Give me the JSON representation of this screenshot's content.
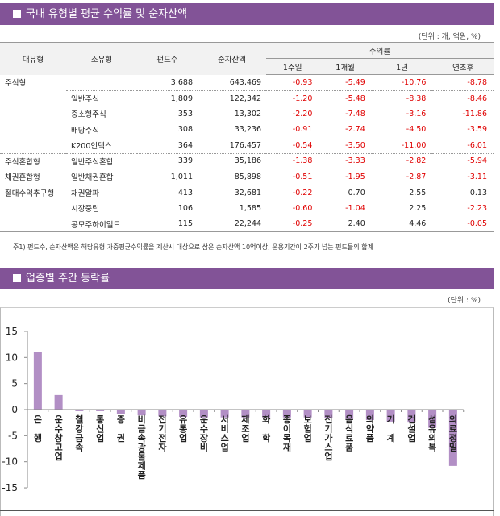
{
  "section1": {
    "title": "국내 유형별 평균 수익률 및 순자산액",
    "unit": "(단위 : 개, 억원, %)",
    "headers": {
      "major_type": "대유형",
      "sub_type": "소유형",
      "fund_count": "펀드수",
      "net_assets": "순자산액",
      "returns_group": "수익률",
      "w1": "1주일",
      "m1": "1개월",
      "y1": "1년",
      "ytd": "연초후"
    },
    "rows": [
      {
        "major": "주식형",
        "sub": "",
        "count": "3,688",
        "assets": "643,469",
        "w1": "-0.93",
        "m1": "-5.49",
        "y1": "-10.76",
        "ytd": "-8.78"
      },
      {
        "major": "",
        "sub": "일반주식",
        "count": "1,809",
        "assets": "122,342",
        "w1": "-1.20",
        "m1": "-5.48",
        "y1": "-8.38",
        "ytd": "-8.46"
      },
      {
        "major": "",
        "sub": "중소형주식",
        "count": "353",
        "assets": "13,302",
        "w1": "-2.20",
        "m1": "-7.48",
        "y1": "-3.16",
        "ytd": "-11.86"
      },
      {
        "major": "",
        "sub": "배당주식",
        "count": "308",
        "assets": "33,236",
        "w1": "-0.91",
        "m1": "-2.74",
        "y1": "-4.50",
        "ytd": "-3.59"
      },
      {
        "major": "",
        "sub": "K200인덱스",
        "count": "364",
        "assets": "176,457",
        "w1": "-0.54",
        "m1": "-3.50",
        "y1": "-11.00",
        "ytd": "-6.01"
      },
      {
        "major": "주식혼합형",
        "sub": "일반주식혼합",
        "count": "339",
        "assets": "35,186",
        "w1": "-1.38",
        "m1": "-3.33",
        "y1": "-2.82",
        "ytd": "-5.94"
      },
      {
        "major": "채권혼합형",
        "sub": "일반채권혼합",
        "count": "1,011",
        "assets": "85,898",
        "w1": "-0.51",
        "m1": "-1.95",
        "y1": "-2.87",
        "ytd": "-3.11"
      },
      {
        "major": "절대수익추구형",
        "sub": "채권알파",
        "count": "413",
        "assets": "32,681",
        "w1": "-0.22",
        "m1": "0.70",
        "y1": "2.55",
        "ytd": "0.13"
      },
      {
        "major": "",
        "sub": "시장중립",
        "count": "106",
        "assets": "1,585",
        "w1": "-0.60",
        "m1": "-1.04",
        "y1": "2.25",
        "ytd": "-2.23"
      },
      {
        "major": "",
        "sub": "공모주하이일드",
        "count": "115",
        "assets": "22,244",
        "w1": "-0.25",
        "m1": "2.40",
        "y1": "4.46",
        "ytd": "-0.05"
      }
    ],
    "note": "주1) 펀드수, 순자산액은 해당유형 가중평균수익률을 계산시 대상으로 삼은 순자산액 10억이상, 운용기간이 2주가 넘는 펀드들의 합계"
  },
  "section2": {
    "title": "업종별 주간 등락률",
    "unit": "(단위 : %)"
  },
  "colors": {
    "header_bg": "#825397",
    "bar": "#b28fc5",
    "negative": "#e00000"
  },
  "chart_data": {
    "type": "bar",
    "title": "업종별 주간 등락률",
    "xlabel": "",
    "ylabel": "",
    "ylim": [
      -15,
      15
    ],
    "yticks": [
      15,
      10,
      5,
      0,
      -5,
      -10,
      -15
    ],
    "grid": false,
    "legend": "none",
    "categories": [
      "은행",
      "운수창고업",
      "철강금속",
      "통신업",
      "증권",
      "비금속광물제품",
      "전기전자",
      "유통업",
      "운수장비",
      "서비스업",
      "제조업",
      "화학",
      "종이목재",
      "보험업",
      "전기가스업",
      "음식료품",
      "의약품",
      "기계",
      "건설업",
      "섬유의복",
      "의료정밀"
    ],
    "labels_vertical": [
      "은\n\n행",
      "운수\n창고\n업",
      "철강\n금속",
      "통\n신\n업",
      "증\n\n권",
      "비금속\n광물제품",
      "전기\n전자",
      "유\n통\n업",
      "운수\n장비",
      "서\n비\n스\n업",
      "제\n조\n업",
      "화\n\n학",
      "종\n이\n목\n재",
      "보\n험\n업",
      "전\n기\n가\n스\n업",
      "음\n식\n료\n품",
      "의\n약\n품",
      "기\n\n계",
      "건\n설\n업",
      "섬\n유\n의\n복",
      "의\n료\n정\n밀"
    ],
    "values": [
      11.1,
      2.8,
      -0.3,
      -0.3,
      -0.9,
      -1.1,
      -1.3,
      -1.4,
      -1.5,
      -1.5,
      -1.5,
      -1.5,
      -1.5,
      -1.5,
      -1.6,
      -1.8,
      -2.0,
      -2.3,
      -2.5,
      -3.5,
      -10.8
    ]
  }
}
